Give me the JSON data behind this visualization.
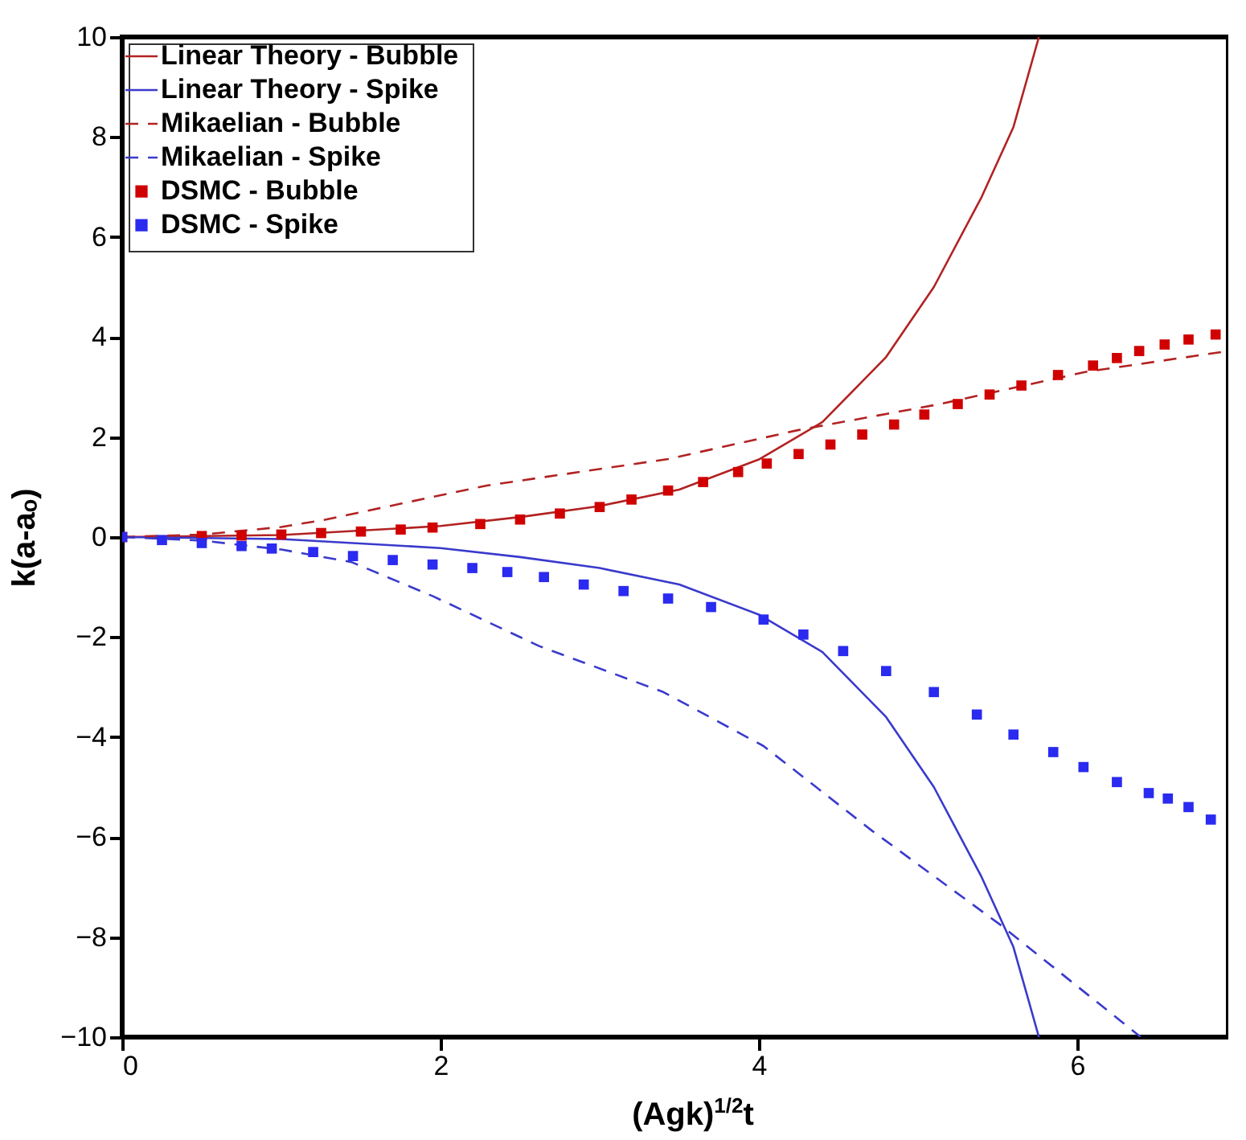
{
  "chart_data": {
    "type": "line",
    "xlabel": "(Agk)$^{1/2}$t",
    "ylabel": "k(a-aₒ)",
    "xlim": [
      0,
      6.95
    ],
    "ylim": [
      -10,
      10
    ],
    "xticks": [
      0,
      2,
      4,
      6
    ],
    "yticks": [
      -10,
      -8,
      -6,
      -4,
      -2,
      0,
      2,
      4,
      6,
      8,
      10
    ],
    "grid": false,
    "legend": "top left",
    "series": [
      {
        "name": "Linear Theory - Bubble",
        "type": "line",
        "line_style": "solid",
        "color": "#b22222",
        "x": [
          0,
          1,
          2,
          2.5,
          3,
          3.5,
          4,
          4.4,
          4.8,
          5.1,
          5.4,
          5.6,
          5.76
        ],
        "values": [
          0,
          0.04,
          0.22,
          0.4,
          0.62,
          0.95,
          1.55,
          2.3,
          3.6,
          5.0,
          6.8,
          8.2,
          10
        ]
      },
      {
        "name": "Linear Theory - Spike",
        "type": "line",
        "line_style": "solid",
        "color": "#3a3acc",
        "x": [
          0,
          1,
          2,
          2.5,
          3,
          3.5,
          4,
          4.4,
          4.8,
          5.1,
          5.4,
          5.6,
          5.76
        ],
        "values": [
          0,
          -0.04,
          -0.22,
          -0.4,
          -0.62,
          -0.95,
          -1.55,
          -2.3,
          -3.6,
          -5.0,
          -6.8,
          -8.2,
          -10
        ]
      },
      {
        "name": "Mikaelian - Bubble",
        "type": "line",
        "line_style": "dashed",
        "color": "#b22222",
        "x": [
          0,
          0.5,
          1,
          1.28,
          2.29,
          3.43,
          4.25,
          5.14,
          6.05,
          6.95
        ],
        "values": [
          0,
          0.05,
          0.2,
          0.35,
          1.03,
          1.56,
          2.14,
          2.66,
          3.3,
          3.72
        ]
      },
      {
        "name": "Mikaelian - Spike",
        "type": "line",
        "line_style": "dashed",
        "color": "#3a3acc",
        "x": [
          0,
          0.5,
          1,
          1.44,
          1.95,
          2.62,
          3.4,
          4.03,
          4.71,
          5.52,
          6.4
        ],
        "values": [
          0,
          -0.07,
          -0.25,
          -0.5,
          -1.18,
          -2.18,
          -3.1,
          -4.18,
          -5.87,
          -7.76,
          -10
        ]
      },
      {
        "name": "DSMC - Bubble",
        "type": "scatter",
        "marker": "square",
        "color": "#d00000",
        "x": [
          0,
          0.25,
          0.5,
          0.75,
          1,
          1.25,
          1.5,
          1.75,
          1.95,
          2.25,
          2.5,
          2.75,
          3,
          3.2,
          3.43,
          3.65,
          3.87,
          4.05,
          4.25,
          4.45,
          4.65,
          4.85,
          5.04,
          5.25,
          5.45,
          5.65,
          5.88,
          6.1,
          6.25,
          6.39,
          6.55,
          6.7,
          6.87
        ],
        "values": [
          0,
          null,
          0.02,
          0.03,
          0.05,
          0.08,
          0.11,
          0.15,
          0.19,
          0.26,
          0.35,
          0.47,
          0.6,
          0.75,
          0.93,
          1.1,
          1.3,
          1.47,
          1.66,
          1.85,
          2.05,
          2.25,
          2.45,
          2.66,
          2.85,
          3.03,
          3.24,
          3.43,
          3.58,
          3.72,
          3.85,
          3.95,
          4.05
        ]
      },
      {
        "name": "DSMC - Spike",
        "type": "scatter",
        "marker": "square",
        "color": "#2a2af0",
        "x": [
          0,
          0.25,
          0.5,
          0.75,
          0.94,
          1.2,
          1.45,
          1.7,
          1.95,
          2.2,
          2.42,
          2.65,
          2.9,
          3.15,
          3.43,
          3.7,
          4.03,
          4.28,
          4.53,
          4.8,
          5.1,
          5.37,
          5.6,
          5.85,
          6.04,
          6.25,
          6.45,
          6.57,
          6.7,
          6.84
        ],
        "values": [
          0,
          -0.06,
          -0.12,
          -0.18,
          -0.23,
          -0.3,
          -0.38,
          -0.46,
          -0.55,
          -0.62,
          -0.7,
          -0.8,
          -0.95,
          -1.08,
          -1.23,
          -1.4,
          -1.65,
          -1.95,
          -2.28,
          -2.68,
          -3.1,
          -3.55,
          -3.95,
          -4.3,
          -4.6,
          -4.9,
          -5.12,
          -5.23,
          -5.4,
          -5.65
        ]
      }
    ]
  }
}
